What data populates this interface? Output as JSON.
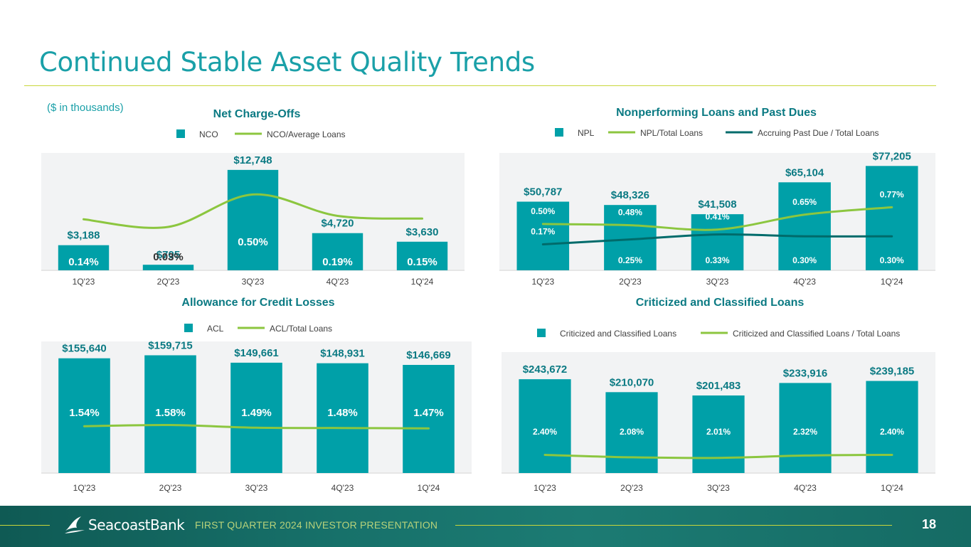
{
  "page": {
    "title": "Continued Stable Asset Quality Trends",
    "units_note": "($ in thousands)",
    "footer_text": "FIRST QUARTER 2024 INVESTOR PRESENTATION",
    "page_number": "18",
    "brand": "SeacoastBank"
  },
  "colors": {
    "accent": "#1aa0a8",
    "bar": "#00a0a8",
    "line_green": "#8cc63f",
    "line_dark": "#006b6b",
    "title_dark": "#0b7a83"
  },
  "chart_data": [
    {
      "id": "nco",
      "type": "bar",
      "title": "Net Charge-Offs",
      "categories": [
        "1Q'23",
        "2Q'23",
        "3Q'23",
        "4Q'23",
        "1Q'24"
      ],
      "bar_series": {
        "name": "NCO",
        "values": [
          3188,
          705,
          12748,
          4720,
          3630
        ],
        "labels": [
          "$3,188",
          "$705",
          "$12,748",
          "$4,720",
          "$3,630"
        ]
      },
      "line_series": [
        {
          "name": "NCO/Average Loans",
          "values": [
            0.14,
            0.03,
            0.5,
            0.19,
            0.15
          ],
          "labels": [
            "0.14%",
            "0.03%",
            "0.50%",
            "0.19%",
            "0.15%"
          ]
        }
      ],
      "ylim": [
        0,
        14000
      ],
      "line_ylim": [
        -0.6,
        1.0
      ]
    },
    {
      "id": "npl",
      "type": "bar",
      "title": "Nonperforming Loans and Past Dues",
      "categories": [
        "1Q'23",
        "2Q'23",
        "3Q'23",
        "4Q'23",
        "1Q'24"
      ],
      "bar_series": {
        "name": "NPL",
        "values": [
          50787,
          48326,
          41508,
          65104,
          77205
        ],
        "labels": [
          "$50,787",
          "$48,326",
          "$41,508",
          "$65,104",
          "$77,205"
        ]
      },
      "line_series": [
        {
          "name": "NPL/Total Loans",
          "values": [
            0.5,
            0.48,
            0.41,
            0.65,
            0.77
          ],
          "labels": [
            "0.50%",
            "0.48%",
            "0.41%",
            "0.65%",
            "0.77%"
          ]
        },
        {
          "name": "Accruing Past Due  / Total Loans",
          "values": [
            0.17,
            0.25,
            0.33,
            0.3,
            0.3
          ],
          "labels": [
            "0.17%",
            "0.25%",
            "0.33%",
            "0.30%",
            "0.30%"
          ]
        }
      ],
      "ylim": [
        0,
        80000
      ],
      "line_ylim": [
        -0.25,
        1.5
      ]
    },
    {
      "id": "acl",
      "type": "bar",
      "title": "Allowance for Credit Losses",
      "categories": [
        "1Q'23",
        "2Q'23",
        "3Q'23",
        "4Q'23",
        "1Q'24"
      ],
      "bar_series": {
        "name": "ACL",
        "values": [
          155640,
          159715,
          149661,
          148931,
          146669
        ],
        "labels": [
          "$155,640",
          "$159,715",
          "$149,661",
          "$148,931",
          "$146,669"
        ]
      },
      "line_series": [
        {
          "name": "ACL/Total Loans",
          "values": [
            1.54,
            1.58,
            1.49,
            1.48,
            1.47
          ],
          "labels": [
            "1.54%",
            "1.58%",
            "1.49%",
            "1.48%",
            "1.47%"
          ]
        }
      ],
      "ylim": [
        0,
        165000
      ],
      "line_ylim": [
        0,
        4.0
      ]
    },
    {
      "id": "cc",
      "type": "bar",
      "title": "Criticized and Classified Loans",
      "categories": [
        "1Q'23",
        "2Q'23",
        "3Q'23",
        "4Q'23",
        "1Q'24"
      ],
      "bar_series": {
        "name": "Criticized and Classified Loans",
        "values": [
          243672,
          210070,
          201483,
          233916,
          239185
        ],
        "labels": [
          "$243,672",
          "$210,070",
          "$201,483",
          "$233,916",
          "$239,185"
        ]
      },
      "line_series": [
        {
          "name": "Criticized and Classified Loans  / Total Loans",
          "values": [
            2.4,
            2.08,
            2.01,
            2.32,
            2.4
          ],
          "labels": [
            "2.40%",
            "2.08%",
            "2.01%",
            "2.32%",
            "2.40%"
          ]
        }
      ],
      "ylim": [
        0,
        255000
      ],
      "line_ylim": [
        0,
        13.0
      ]
    }
  ]
}
